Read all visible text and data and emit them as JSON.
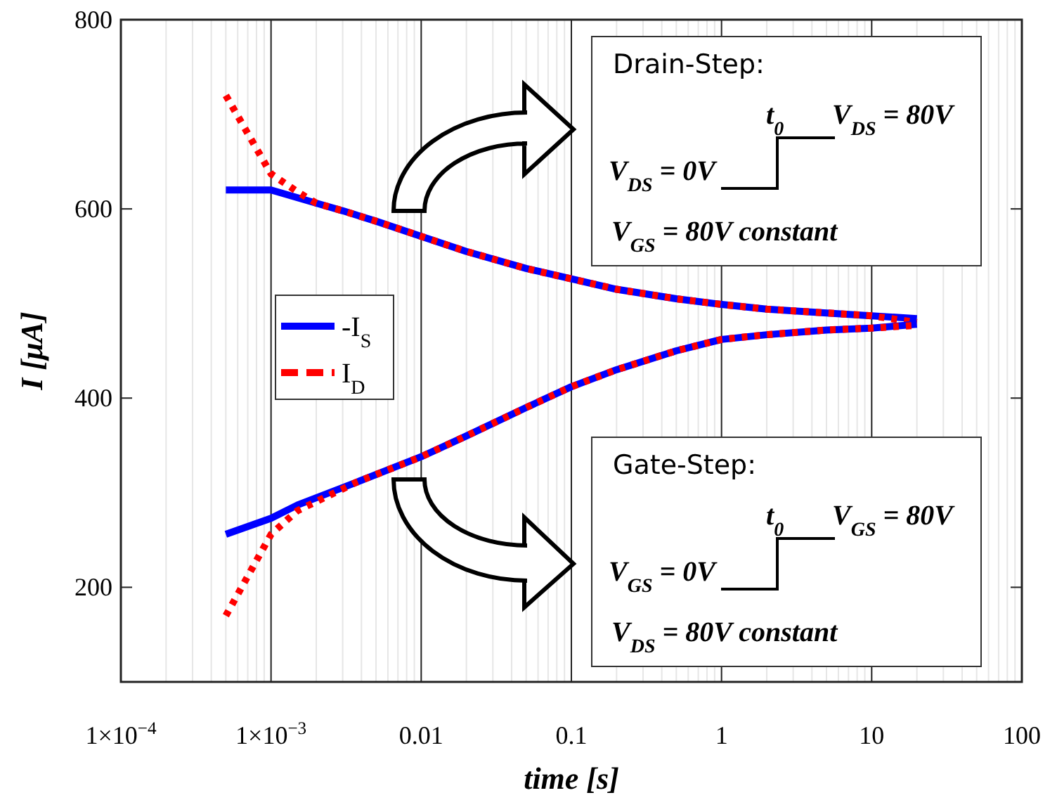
{
  "chart_data": {
    "type": "line",
    "xlabel": "time [s]",
    "ylabel": "I [μA]",
    "log": "x",
    "grid": "x",
    "legend": "left",
    "xlim": [
      0.0001,
      100
    ],
    "xticks": [
      {
        "value": 0.0001,
        "label": "1×10$^{−4}$"
      },
      {
        "value": 0.001,
        "label": "1×10$^{−3}$"
      },
      0.01,
      0.1,
      1,
      10,
      100
    ],
    "ylim": [
      100,
      800
    ],
    "yticks": [
      200,
      400,
      600,
      800
    ],
    "series": [
      {
        "name": "-I$_{S}$",
        "color": "#0000ff",
        "line_style": "solid",
        "x": [
          0.0005,
          0.001,
          0.002,
          0.003,
          0.005,
          0.01,
          0.02,
          0.05,
          0.1,
          0.2,
          0.5,
          1,
          2,
          5,
          10,
          20
        ],
        "values": [
          620,
          620,
          606,
          598,
          587,
          571,
          555,
          537,
          526,
          515,
          505,
          499,
          494,
          490,
          487,
          484
        ]
      },
      {
        "name": "I$_{D}$",
        "color": "#ff0000",
        "line_style": "dotted",
        "x": [
          0.0005,
          0.001,
          0.0015,
          0.002,
          0.003,
          0.005,
          0.01,
          0.02,
          0.05,
          0.1,
          0.2,
          0.5,
          1,
          2,
          5,
          10,
          20
        ],
        "values": [
          720,
          637,
          618,
          606,
          598,
          587,
          571,
          555,
          537,
          526,
          515,
          505,
          499,
          494,
          490,
          487,
          480
        ]
      },
      {
        "color": "#0000ff",
        "line_style": "solid",
        "x": [
          0.0005,
          0.001,
          0.0015,
          0.0037,
          0.01,
          0.02,
          0.05,
          0.1,
          0.2,
          0.5,
          1,
          2,
          5,
          10,
          20
        ],
        "values": [
          256,
          273,
          287,
          311,
          338,
          360,
          390,
          412,
          430,
          450,
          462,
          467,
          472,
          474,
          478
        ]
      },
      {
        "color": "#ff0000",
        "line_style": "dotted",
        "x": [
          0.0005,
          0.001,
          0.0015,
          0.0037,
          0.01,
          0.02,
          0.05,
          0.1,
          0.2,
          0.5,
          1,
          2,
          5,
          10,
          20
        ],
        "values": [
          170,
          256,
          281,
          311,
          338,
          360,
          390,
          412,
          430,
          450,
          462,
          467,
          472,
          474,
          477
        ]
      }
    ],
    "annotations": [
      "Drain-Step:",
      "t$_{0}$",
      "V$_{DS}$ = 80V",
      "V$_{DS}$ = 0V",
      "V$_{GS}$ = 80V constant",
      "Gate-Step:",
      "t$_{0}$",
      "V$_{GS}$ = 80V",
      "V$_{GS}$ = 0V",
      "V$_{DS}$ = 80V constant"
    ]
  }
}
